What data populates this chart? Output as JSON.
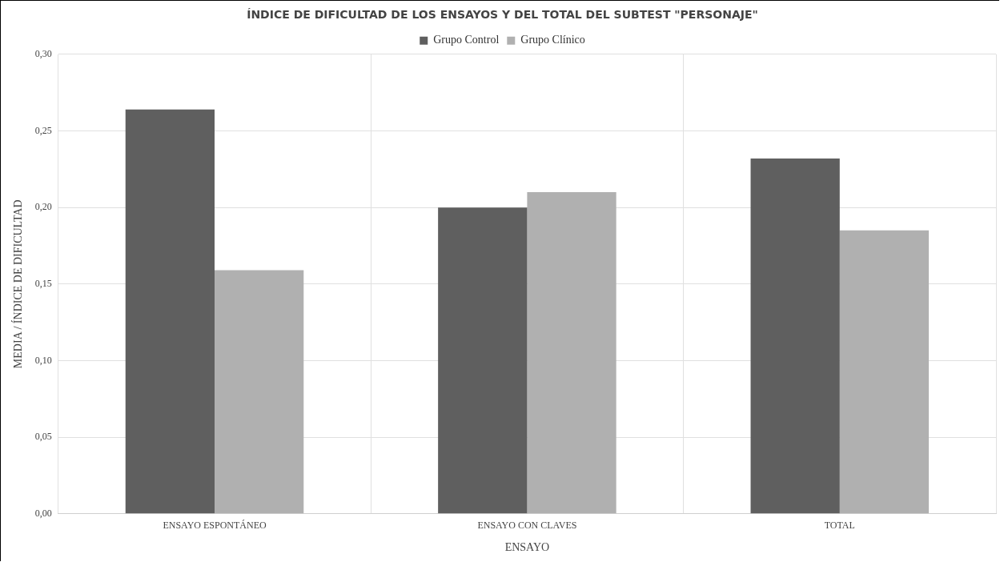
{
  "chart_data": {
    "type": "bar",
    "title": "ÍNDICE DE DIFICULTAD DE LOS ENSAYOS Y DEL TOTAL DEL SUBTEST \"PERSONAJE\"",
    "xlabel": "ENSAYO",
    "ylabel": "MEDIA / ÍNDICE DE DIFICULTAD",
    "categories": [
      "ENSAYO ESPONTÁNEO",
      "ENSAYO CON CLAVES",
      "TOTAL"
    ],
    "series": [
      {
        "name": "Grupo Control",
        "color": "#5f5f5f",
        "values": [
          0.264,
          0.2,
          0.232
        ]
      },
      {
        "name": "Grupo Clínico",
        "color": "#b0b0b0",
        "values": [
          0.159,
          0.21,
          0.185
        ]
      }
    ],
    "ylim": [
      0,
      0.3
    ],
    "yticks": [
      {
        "value": 0,
        "label": "0,00"
      },
      {
        "value": 0.05,
        "label": "0,05"
      },
      {
        "value": 0.1,
        "label": "0,10"
      },
      {
        "value": 0.15,
        "label": "0,15"
      },
      {
        "value": 0.2,
        "label": "0,20"
      },
      {
        "value": 0.25,
        "label": "0,25"
      },
      {
        "value": 0.3,
        "label": "0,30"
      }
    ],
    "grid": true,
    "legend": "top"
  }
}
